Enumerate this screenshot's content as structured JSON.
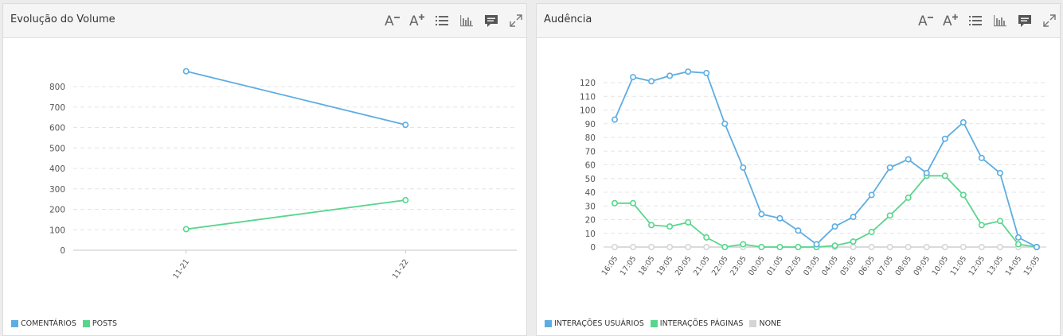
{
  "panels": [
    {
      "title": "Evolução do Volume",
      "icons": [
        "font-decrease-icon",
        "font-increase-icon",
        "list-icon",
        "bar-chart-icon",
        "comment-icon",
        "expand-icon"
      ]
    },
    {
      "title": "Audência",
      "icons": [
        "font-decrease-icon",
        "font-increase-icon",
        "list-icon",
        "bar-chart-icon",
        "comment-icon",
        "expand-icon"
      ]
    }
  ],
  "colors": {
    "blue": "#5dade2",
    "green": "#58d68d",
    "gray": "#d5d5d5"
  },
  "chart_data": [
    {
      "type": "line",
      "title": "Evolução do Volume",
      "categories": [
        "11-21",
        "11-22"
      ],
      "ylim": [
        0,
        800
      ],
      "yticks": [
        0,
        100,
        200,
        300,
        400,
        500,
        600,
        700,
        800
      ],
      "series": [
        {
          "name": "COMENTÁRIOS",
          "color": "#5dade2",
          "values": [
            875,
            613
          ]
        },
        {
          "name": "POSTS",
          "color": "#58d68d",
          "values": [
            103,
            245
          ]
        }
      ],
      "grid": true,
      "legend": "bottom-left"
    },
    {
      "type": "line",
      "title": "Audência",
      "categories": [
        "16:05",
        "17:05",
        "18:05",
        "19:05",
        "20:05",
        "21:05",
        "22:05",
        "23:05",
        "00:05",
        "01:05",
        "02:05",
        "03:05",
        "04:05",
        "05:05",
        "06:05",
        "07:05",
        "08:05",
        "09:05",
        "10:05",
        "11:05",
        "12:05",
        "13:05",
        "14:05",
        "15:05"
      ],
      "ylim": [
        0,
        120
      ],
      "yticks": [
        0,
        10,
        20,
        30,
        40,
        50,
        60,
        70,
        80,
        90,
        100,
        110,
        120
      ],
      "series": [
        {
          "name": "INTERAÇÕES USUÁRIOS",
          "color": "#5dade2",
          "values": [
            93,
            124,
            121,
            125,
            128,
            127,
            90,
            58,
            24,
            21,
            12,
            2,
            15,
            22,
            38,
            58,
            64,
            54,
            79,
            91,
            65,
            54,
            7,
            0
          ]
        },
        {
          "name": "INTERAÇÕES PÁGINAS",
          "color": "#58d68d",
          "values": [
            32,
            32,
            16,
            15,
            18,
            7,
            0,
            2,
            0,
            0,
            0,
            0,
            1,
            4,
            11,
            23,
            36,
            52,
            52,
            38,
            16,
            19,
            2,
            0
          ]
        },
        {
          "name": "NONE",
          "color": "#d5d5d5",
          "values": [
            0,
            0,
            0,
            0,
            0,
            0,
            0,
            0,
            0,
            0,
            0,
            0,
            0,
            0,
            0,
            0,
            0,
            0,
            0,
            0,
            0,
            0,
            0,
            0
          ]
        }
      ],
      "grid": true,
      "legend": "bottom-left"
    }
  ]
}
